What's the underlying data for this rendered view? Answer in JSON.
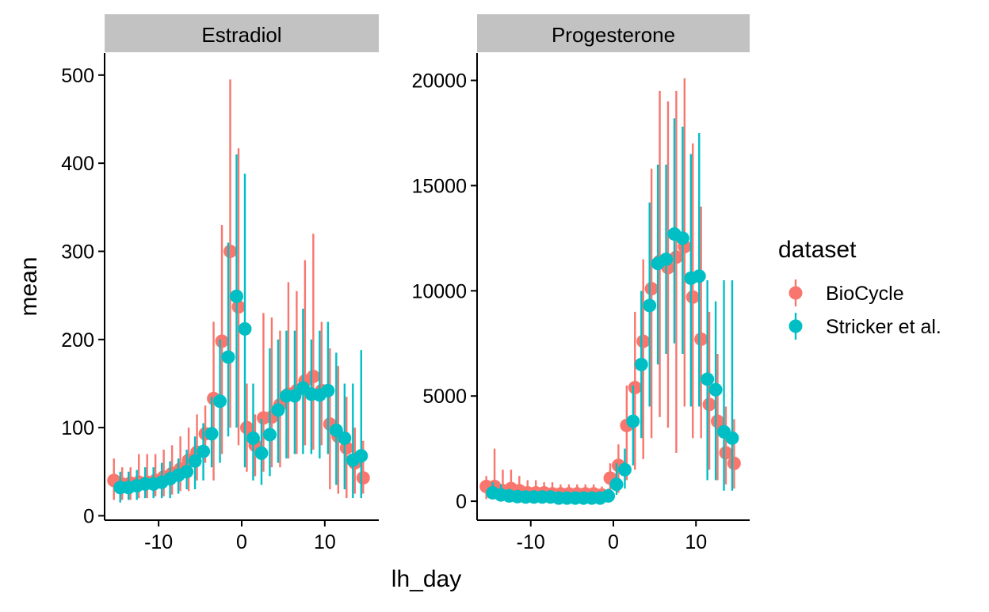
{
  "figure": {
    "xlabel": "lh_day",
    "ylabel": "mean",
    "legend": {
      "title": "dataset",
      "position": "right",
      "entries": [
        {
          "name": "BioCycle",
          "color": "#F8766D"
        },
        {
          "name": "Stricker et al.",
          "color": "#00BFC4"
        }
      ]
    }
  },
  "chart_data": [
    {
      "type": "scatter",
      "panel": "Estradiol",
      "xlim": [
        -16.5,
        16.5
      ],
      "ylim": [
        -5,
        525
      ],
      "xticks": [
        -10,
        0,
        10
      ],
      "yticks": [
        0,
        100,
        200,
        300,
        400,
        500
      ],
      "grid": false,
      "error_bars": true,
      "series": [
        {
          "name": "BioCycle",
          "color": "#F8766D",
          "x": [
            -15,
            -14,
            -13,
            -12,
            -11,
            -10,
            -9,
            -8,
            -7,
            -6,
            -5,
            -4,
            -3,
            -2,
            -1,
            0,
            1,
            2,
            3,
            4,
            5,
            6,
            7,
            8,
            9,
            10,
            11,
            12,
            13,
            14,
            15
          ],
          "y": [
            40,
            36,
            37,
            38,
            38,
            40,
            44,
            48,
            53,
            63,
            72,
            93,
            133,
            198,
            300,
            237,
            100,
            80,
            111,
            112,
            126,
            138,
            142,
            153,
            158,
            142,
            104,
            90,
            77,
            60,
            43
          ],
          "ymin": [
            18,
            18,
            18,
            20,
            20,
            22,
            22,
            24,
            28,
            28,
            40,
            60,
            40,
            70,
            100,
            80,
            50,
            45,
            50,
            55,
            55,
            65,
            70,
            80,
            75,
            80,
            30,
            25,
            20,
            25,
            25
          ],
          "ymax": [
            65,
            55,
            55,
            70,
            70,
            70,
            75,
            80,
            90,
            100,
            115,
            125,
            220,
            330,
            495,
            417,
            150,
            115,
            230,
            225,
            210,
            265,
            255,
            290,
            320,
            220,
            190,
            170,
            135,
            100,
            85
          ]
        },
        {
          "name": "Stricker et al.",
          "color": "#00BFC4",
          "x": [
            -15,
            -14,
            -13,
            -12,
            -11,
            -10,
            -9,
            -8,
            -7,
            -6,
            -5,
            -4,
            -3,
            -2,
            -1,
            0,
            1,
            2,
            3,
            4,
            5,
            6,
            7,
            8,
            9,
            10,
            11,
            12,
            13,
            14
          ],
          "y": [
            32,
            32,
            34,
            36,
            36,
            38,
            42,
            46,
            50,
            62,
            73,
            93,
            130,
            180,
            249,
            212,
            88,
            71,
            92,
            120,
            136,
            136,
            145,
            138,
            137,
            142,
            97,
            88,
            63,
            68
          ],
          "ymin": [
            15,
            18,
            18,
            20,
            20,
            20,
            20,
            25,
            30,
            30,
            40,
            55,
            60,
            90,
            100,
            55,
            40,
            35,
            45,
            60,
            65,
            70,
            70,
            70,
            65,
            70,
            35,
            30,
            20,
            20
          ],
          "ymax": [
            50,
            50,
            52,
            55,
            55,
            60,
            62,
            65,
            75,
            90,
            105,
            135,
            200,
            310,
            410,
            388,
            150,
            110,
            190,
            200,
            210,
            210,
            235,
            200,
            210,
            220,
            185,
            150,
            150,
            188
          ]
        }
      ]
    },
    {
      "type": "scatter",
      "panel": "Progesterone",
      "xlim": [
        -16.5,
        16.5
      ],
      "ylim": [
        -900,
        21300
      ],
      "xticks": [
        -10,
        0,
        10
      ],
      "yticks": [
        0,
        5000,
        10000,
        15000,
        20000
      ],
      "grid": false,
      "error_bars": true,
      "series": [
        {
          "name": "BioCycle",
          "color": "#F8766D",
          "x": [
            -15,
            -14,
            -13,
            -12,
            -11,
            -10,
            -9,
            -8,
            -7,
            -6,
            -5,
            -4,
            -3,
            -2,
            -1,
            0,
            1,
            2,
            3,
            4,
            5,
            6,
            7,
            8,
            9,
            10,
            11,
            12,
            13,
            14,
            15
          ],
          "y": [
            700,
            700,
            500,
            600,
            500,
            400,
            400,
            400,
            350,
            350,
            350,
            350,
            350,
            350,
            300,
            1100,
            1700,
            3600,
            5400,
            7600,
            10100,
            11400,
            11100,
            11600,
            12100,
            9700,
            7700,
            4600,
            3800,
            2300,
            1800
          ],
          "ymin": [
            100,
            100,
            100,
            100,
            100,
            50,
            50,
            50,
            50,
            50,
            50,
            50,
            50,
            50,
            50,
            200,
            400,
            1000,
            1500,
            2000,
            3000,
            4000,
            3500,
            2300,
            4500,
            3000,
            3000,
            1500,
            1000,
            800,
            600
          ],
          "ymax": [
            1200,
            2500,
            1500,
            1500,
            1200,
            1000,
            1000,
            900,
            900,
            800,
            800,
            800,
            800,
            800,
            700,
            1800,
            2700,
            5500,
            9000,
            11500,
            15800,
            19500,
            19000,
            19500,
            20100,
            17000,
            14000,
            9000,
            7000,
            4500,
            3900
          ]
        },
        {
          "name": "Stricker et al.",
          "color": "#00BFC4",
          "x": [
            -15,
            -14,
            -13,
            -12,
            -11,
            -10,
            -9,
            -8,
            -7,
            -6,
            -5,
            -4,
            -3,
            -2,
            -1,
            0,
            1,
            2,
            3,
            4,
            5,
            6,
            7,
            8,
            9,
            10,
            11,
            12,
            13,
            14
          ],
          "y": [
            400,
            300,
            250,
            220,
            200,
            200,
            200,
            200,
            150,
            150,
            150,
            150,
            150,
            150,
            250,
            800,
            1500,
            3800,
            6500,
            9300,
            11300,
            11500,
            12700,
            12500,
            10600,
            10700,
            5800,
            5300,
            3300,
            3000
          ],
          "ymin": [
            150,
            100,
            100,
            80,
            80,
            80,
            80,
            70,
            50,
            50,
            50,
            50,
            50,
            50,
            80,
            300,
            600,
            1700,
            3000,
            4500,
            6500,
            7000,
            7500,
            7000,
            4500,
            4500,
            1000,
            1000,
            500,
            500
          ],
          "ymax": [
            900,
            800,
            600,
            500,
            500,
            400,
            400,
            400,
            350,
            350,
            350,
            350,
            350,
            350,
            600,
            1800,
            2500,
            5500,
            10000,
            14200,
            16000,
            16000,
            18200,
            17800,
            16500,
            17500,
            10500,
            9500,
            10500,
            10500
          ]
        }
      ]
    }
  ]
}
